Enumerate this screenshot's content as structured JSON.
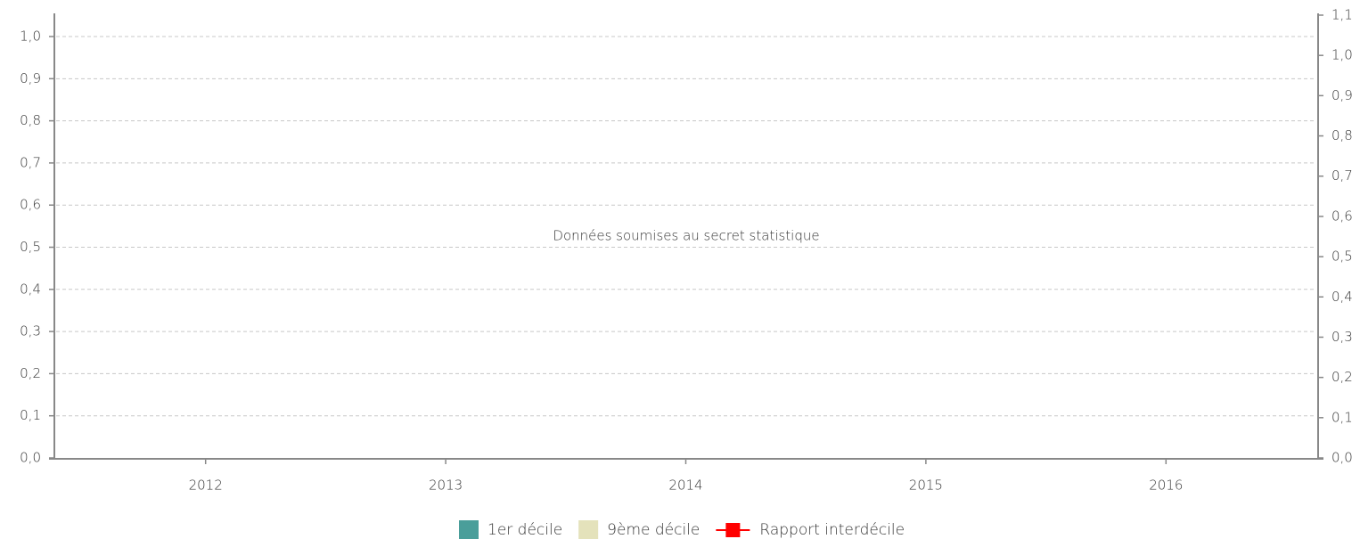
{
  "chart_data": {
    "type": "bar",
    "annotation": "Données soumises au secret statistique",
    "categories": [
      "2012",
      "2013",
      "2014",
      "2015",
      "2016"
    ],
    "series": [
      {
        "name": "1er décile",
        "color": "#4a9e9a",
        "values": [
          null,
          null,
          null,
          null,
          null
        ]
      },
      {
        "name": "9ème décile",
        "color": "#e4e2bb",
        "values": [
          null,
          null,
          null,
          null,
          null
        ]
      },
      {
        "name": "Rapport interdécile",
        "color": "#ff0000",
        "axis": "y2",
        "type": "line",
        "values": [
          null,
          null,
          null,
          null,
          null
        ]
      }
    ],
    "ylim": [
      0,
      1.055
    ],
    "yticks": [
      {
        "value": 0,
        "label": "0,0"
      },
      {
        "value": 0.1,
        "label": "0,1"
      },
      {
        "value": 0.2,
        "label": "0,2"
      },
      {
        "value": 0.3,
        "label": "0,3"
      },
      {
        "value": 0.4,
        "label": "0,4"
      },
      {
        "value": 0.5,
        "label": "0,5"
      },
      {
        "value": 0.6,
        "label": "0,6"
      },
      {
        "value": 0.7,
        "label": "0,7"
      },
      {
        "value": 0.8,
        "label": "0,8"
      },
      {
        "value": 0.9,
        "label": "0,9"
      },
      {
        "value": 1.0,
        "label": "1,0"
      }
    ],
    "y2lim": [
      0,
      1.1
    ],
    "y2ticks": [
      {
        "value": 0,
        "label": "0,0"
      },
      {
        "value": 0.1,
        "label": "0,1"
      },
      {
        "value": 0.2,
        "label": "0,2"
      },
      {
        "value": 0.3,
        "label": "0,3"
      },
      {
        "value": 0.4,
        "label": "0,4"
      },
      {
        "value": 0.5,
        "label": "0,5"
      },
      {
        "value": 0.6,
        "label": "0,6"
      },
      {
        "value": 0.7,
        "label": "0,7"
      },
      {
        "value": 0.8,
        "label": "0,8"
      },
      {
        "value": 0.9,
        "label": "0,9"
      },
      {
        "value": 1.0,
        "label": "1,0"
      },
      {
        "value": 1.1,
        "label": "1,1"
      }
    ],
    "grid": true,
    "legend": "bottom"
  }
}
